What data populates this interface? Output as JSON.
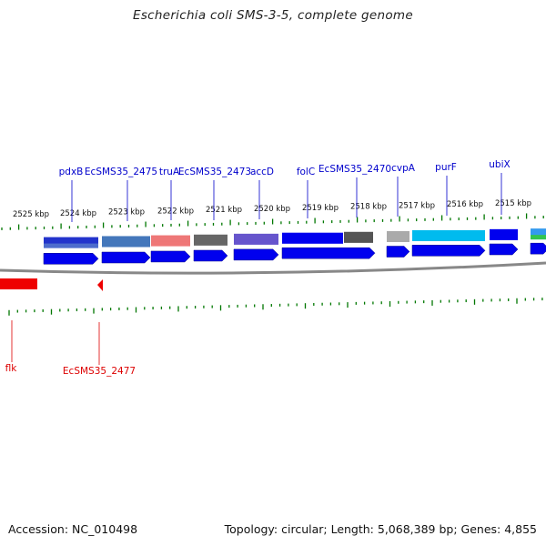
{
  "title": "Escherichia coli SMS-3-5, complete genome",
  "footer": {
    "accession": "Accession: NC_010498",
    "summary": "Topology: circular; Length: 5,068,389 bp; Genes: 4,855"
  },
  "colors": {
    "forward_label": "#0000cc",
    "reverse_label": "#dd0000",
    "forward_gene": "#0000ee",
    "reverse_gene": "#ee0000",
    "tick": "#007700",
    "backbone": "#888888"
  },
  "scale_labels": [
    "2525 kbp",
    "2524 kbp",
    "2523 kbp",
    "2522 kbp",
    "2521 kbp",
    "2520 kbp",
    "2519 kbp",
    "2518 kbp",
    "2517 kbp",
    "2516 kbp",
    "2515 kbp"
  ],
  "forward_gene_labels": [
    "pdxB",
    "EcSMS35_2475",
    "truA",
    "EcSMS35_2473",
    "accD",
    "folC",
    "EcSMS35_2470",
    "cvpA",
    "purF",
    "ubiX"
  ],
  "reverse_gene_labels": [
    "flk",
    "EcSMS35_2477"
  ]
}
